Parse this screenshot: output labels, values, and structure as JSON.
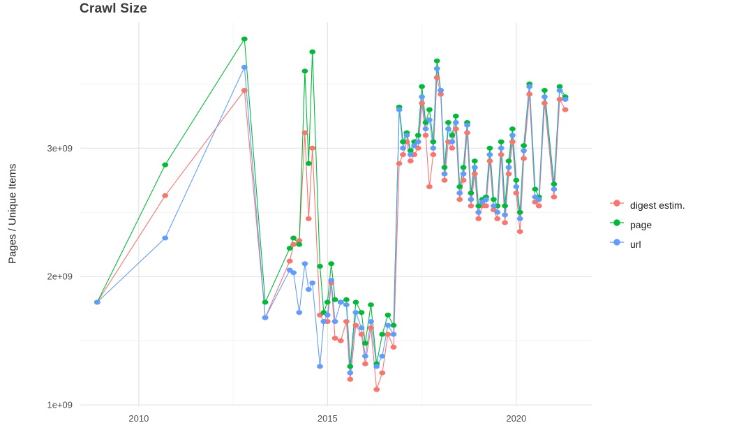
{
  "chart_data": {
    "type": "scatter",
    "title": "Crawl Size",
    "xlabel": "",
    "ylabel": "Pages / Unique Items",
    "legend_position": "right",
    "grid": true,
    "xlim": [
      2008.45,
      2022.0
    ],
    "ylim": [
      0.99,
      3.98
    ],
    "y_unit": "1e+09 (values below are in billions)",
    "x_ticks": [
      {
        "v": 2010,
        "label": "2010"
      },
      {
        "v": 2015,
        "label": "2015"
      },
      {
        "v": 2020,
        "label": "2020"
      }
    ],
    "x_minor": [
      2012.5,
      2017.5
    ],
    "y_ticks": [
      {
        "v": 1,
        "label": "1e+09"
      },
      {
        "v": 2,
        "label": "2e+09"
      },
      {
        "v": 3,
        "label": "3e+09"
      }
    ],
    "y_minor": [
      1.5,
      2.5,
      3.5
    ],
    "x": [
      2008.9,
      2010.7,
      2012.8,
      2013.35,
      2014.0,
      2014.1,
      2014.25,
      2014.4,
      2014.5,
      2014.6,
      2014.8,
      2014.9,
      2015.0,
      2015.1,
      2015.2,
      2015.35,
      2015.5,
      2015.6,
      2015.75,
      2015.9,
      2016.0,
      2016.15,
      2016.3,
      2016.45,
      2016.6,
      2016.75,
      2016.9,
      2017.0,
      2017.1,
      2017.2,
      2017.3,
      2017.4,
      2017.5,
      2017.6,
      2017.7,
      2017.8,
      2017.9,
      2018.0,
      2018.1,
      2018.2,
      2018.3,
      2018.4,
      2018.5,
      2018.6,
      2018.7,
      2018.8,
      2018.9,
      2019.0,
      2019.1,
      2019.2,
      2019.3,
      2019.4,
      2019.5,
      2019.6,
      2019.7,
      2019.8,
      2019.9,
      2020.0,
      2020.1,
      2020.2,
      2020.35,
      2020.5,
      2020.6,
      2020.75,
      2021.0,
      2021.15,
      2021.3
    ],
    "series": [
      {
        "name": "digest estim.",
        "color": "#F8766D",
        "values": [
          1.8,
          2.63,
          3.45,
          1.68,
          2.12,
          2.25,
          2.28,
          3.12,
          2.45,
          3.0,
          1.7,
          1.65,
          1.65,
          1.95,
          1.52,
          1.5,
          1.65,
          1.2,
          1.62,
          1.55,
          1.32,
          1.6,
          1.12,
          1.25,
          1.55,
          1.45,
          2.88,
          2.95,
          3.05,
          2.9,
          2.95,
          3.0,
          3.35,
          3.1,
          2.7,
          2.95,
          3.55,
          3.42,
          2.75,
          3.05,
          3.0,
          3.15,
          2.6,
          2.75,
          3.12,
          2.55,
          2.8,
          2.45,
          2.55,
          2.55,
          2.9,
          2.52,
          2.45,
          2.95,
          2.42,
          2.8,
          3.05,
          2.65,
          2.35,
          2.92,
          3.42,
          2.58,
          2.55,
          3.35,
          2.62,
          3.38,
          3.3
        ]
      },
      {
        "name": "page",
        "color": "#00BA38",
        "values": [
          1.8,
          2.87,
          3.85,
          1.8,
          2.22,
          2.3,
          2.25,
          3.6,
          2.88,
          3.75,
          2.08,
          1.72,
          1.8,
          2.1,
          1.82,
          1.8,
          1.82,
          1.3,
          1.8,
          1.72,
          1.48,
          1.78,
          1.32,
          1.55,
          1.7,
          1.62,
          3.32,
          3.05,
          3.12,
          2.98,
          3.05,
          3.1,
          3.48,
          3.2,
          3.3,
          3.05,
          3.68,
          3.45,
          2.85,
          3.2,
          3.1,
          3.25,
          2.7,
          2.85,
          3.2,
          2.65,
          2.9,
          2.55,
          2.6,
          2.62,
          3.0,
          2.6,
          2.55,
          3.05,
          2.55,
          2.9,
          3.15,
          2.75,
          2.5,
          3.02,
          3.5,
          2.68,
          2.62,
          3.45,
          2.72,
          3.48,
          3.4
        ]
      },
      {
        "name": "url",
        "color": "#619CFF",
        "values": [
          1.8,
          2.3,
          3.63,
          1.68,
          2.05,
          2.03,
          1.72,
          2.1,
          1.9,
          1.95,
          1.3,
          1.65,
          1.7,
          1.97,
          1.65,
          1.8,
          1.78,
          1.25,
          1.72,
          1.6,
          1.38,
          1.65,
          1.3,
          1.38,
          1.62,
          1.55,
          3.3,
          3.0,
          3.1,
          2.95,
          3.02,
          3.05,
          3.4,
          3.15,
          3.22,
          3.0,
          3.62,
          3.45,
          2.8,
          3.15,
          3.05,
          3.2,
          2.65,
          2.8,
          3.18,
          2.6,
          2.85,
          2.5,
          2.58,
          2.6,
          2.95,
          2.55,
          2.5,
          3.0,
          2.48,
          2.85,
          3.1,
          2.7,
          2.45,
          2.98,
          3.48,
          2.62,
          2.6,
          3.4,
          2.68,
          3.45,
          3.38
        ]
      }
    ]
  },
  "colors": {
    "grid_major": "#e2e2e2",
    "grid_minor": "#f0f0f0",
    "axis_text": "#4d4d4d",
    "title_text": "#3c3c3c",
    "background": "#ffffff"
  }
}
